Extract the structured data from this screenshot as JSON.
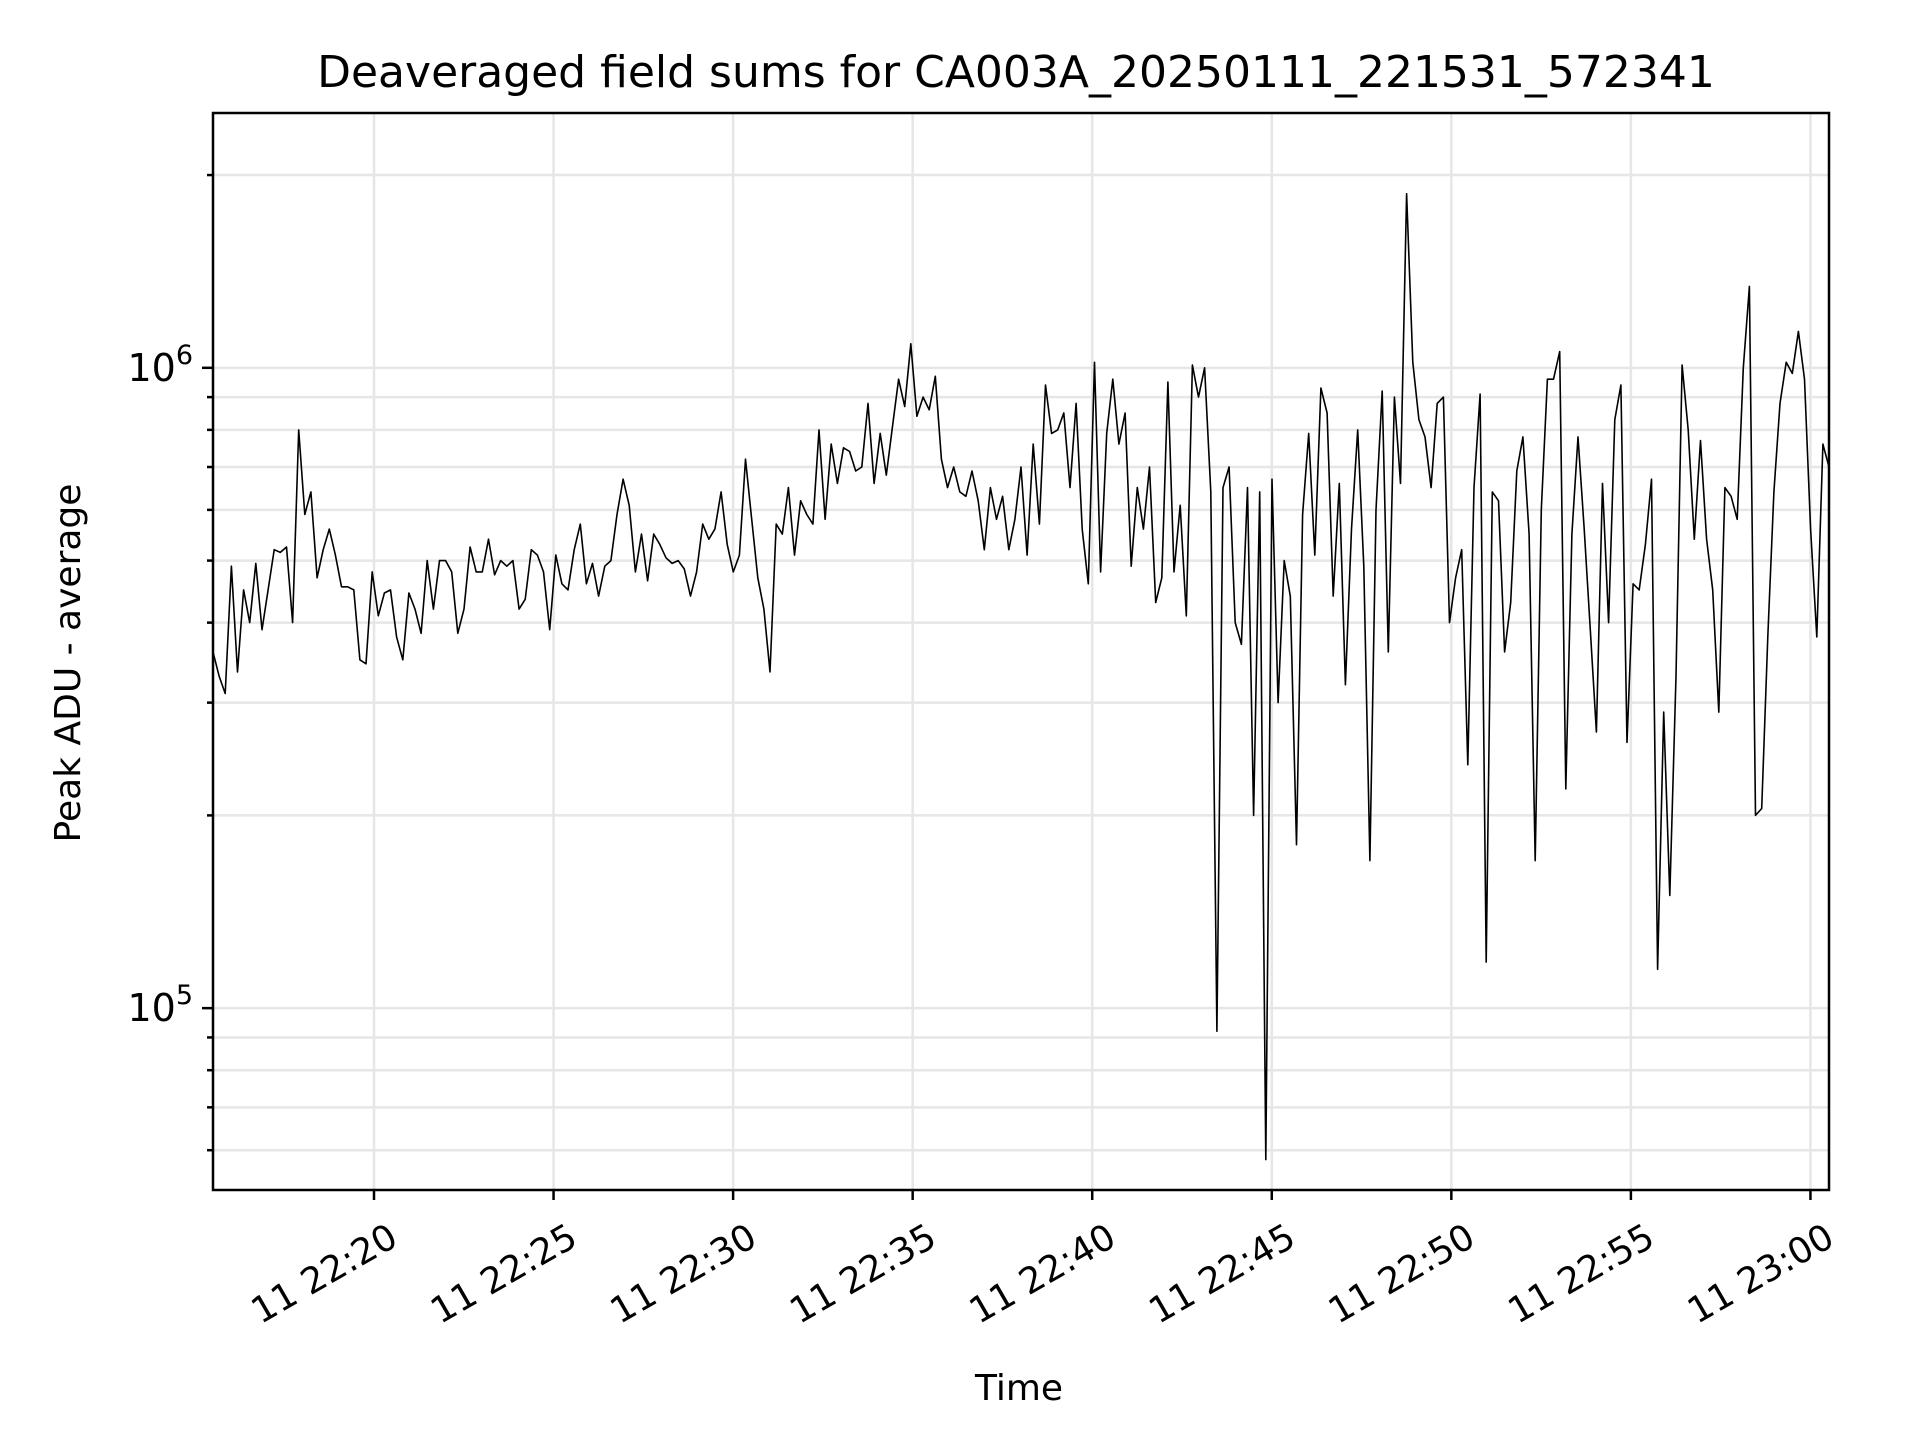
{
  "chart_data": {
    "type": "line",
    "title": "Deaveraged field sums for CA003A_20250111_221531_572341",
    "xlabel": "Time",
    "ylabel": "Peak ADU - average",
    "yscale": "log",
    "ylim": [
      52000,
      2500000
    ],
    "xlim": [
      "2025-01-11T22:15:31",
      "2025-01-11T23:00:31"
    ],
    "grid": true,
    "x_ticks": [
      "2025-01-11T22:20",
      "2025-01-11T22:25",
      "2025-01-11T22:30",
      "2025-01-11T22:35",
      "2025-01-11T22:40",
      "2025-01-11T22:45",
      "2025-01-11T22:50",
      "2025-01-11T22:55",
      "2025-01-11T23:00"
    ],
    "x_tick_labels": [
      "11 22:20",
      "11 22:25",
      "11 22:30",
      "11 22:35",
      "11 22:40",
      "11 22:45",
      "11 22:50",
      "11 22:55",
      "11 23:00"
    ],
    "y_ticks": [
      {
        "value": 100000,
        "base": "10",
        "exp": "5"
      },
      {
        "value": 1000000,
        "base": "10",
        "exp": "6"
      }
    ],
    "series": [
      {
        "color": "#000000",
        "x_start": "2025-01-11T22:15:31",
        "x_end": "2025-01-11T23:00:31",
        "values": [
          360000,
          330000,
          310000,
          490000,
          335000,
          450000,
          400000,
          495000,
          390000,
          450000,
          520000,
          515000,
          525000,
          400000,
          800000,
          590000,
          640000,
          470000,
          520000,
          560000,
          510000,
          455000,
          455000,
          450000,
          350000,
          345000,
          480000,
          410000,
          445000,
          450000,
          380000,
          350000,
          445000,
          420000,
          385000,
          500000,
          420000,
          500000,
          500000,
          480000,
          385000,
          420000,
          525000,
          480000,
          480000,
          540000,
          475000,
          500000,
          490000,
          500000,
          420000,
          435000,
          520000,
          510000,
          480000,
          390000,
          510000,
          460000,
          450000,
          520000,
          570000,
          460000,
          495000,
          440000,
          490000,
          500000,
          590000,
          670000,
          610000,
          480000,
          550000,
          465000,
          550000,
          530000,
          505000,
          495000,
          500000,
          485000,
          440000,
          480000,
          570000,
          540000,
          560000,
          640000,
          530000,
          480000,
          510000,
          720000,
          580000,
          470000,
          420000,
          335000,
          570000,
          550000,
          650000,
          510000,
          620000,
          590000,
          570000,
          800000,
          580000,
          760000,
          660000,
          750000,
          740000,
          690000,
          700000,
          880000,
          660000,
          790000,
          680000,
          810000,
          960000,
          870000,
          1090000,
          840000,
          900000,
          860000,
          970000,
          720000,
          650000,
          700000,
          640000,
          630000,
          690000,
          620000,
          520000,
          650000,
          580000,
          630000,
          520000,
          580000,
          700000,
          510000,
          760000,
          570000,
          940000,
          790000,
          800000,
          850000,
          650000,
          880000,
          560000,
          460000,
          1020000,
          480000,
          790000,
          960000,
          760000,
          850000,
          490000,
          650000,
          560000,
          700000,
          430000,
          470000,
          950000,
          480000,
          610000,
          410000,
          1010000,
          900000,
          1000000,
          640000,
          92000,
          650000,
          700000,
          400000,
          370000,
          650000,
          200000,
          640000,
          58000,
          670000,
          300000,
          500000,
          440000,
          180000,
          590000,
          790000,
          510000,
          930000,
          850000,
          440000,
          660000,
          320000,
          560000,
          800000,
          490000,
          170000,
          600000,
          920000,
          360000,
          900000,
          660000,
          1870000,
          1020000,
          830000,
          780000,
          650000,
          880000,
          900000,
          400000,
          470000,
          520000,
          240000,
          650000,
          910000,
          118000,
          640000,
          620000,
          360000,
          430000,
          690000,
          780000,
          550000,
          170000,
          600000,
          960000,
          960000,
          1060000,
          220000,
          550000,
          780000,
          560000,
          390000,
          270000,
          660000,
          400000,
          830000,
          940000,
          260000,
          460000,
          450000,
          530000,
          670000,
          115000,
          290000,
          150000,
          330000,
          1010000,
          800000,
          540000,
          770000,
          540000,
          450000,
          290000,
          650000,
          630000,
          580000,
          1000000,
          1340000,
          200000,
          205000,
          380000,
          640000,
          880000,
          1020000,
          980000,
          1140000,
          960000,
          560000,
          380000,
          760000,
          700000
        ]
      }
    ]
  }
}
